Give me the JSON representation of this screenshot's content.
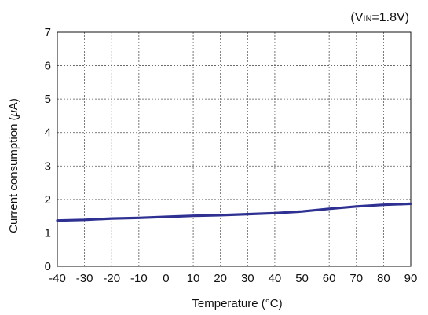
{
  "chart_data": {
    "type": "line",
    "title": "",
    "annotation": {
      "prefix": "(V",
      "subscript": "IN",
      "suffix": "=1.8V)"
    },
    "xlabel": "Temperature (°C)",
    "ylabel_parts": {
      "before": "Current consumption (",
      "greek": "μ",
      "after": "A)"
    },
    "xlim": [
      -40,
      90
    ],
    "ylim": [
      0,
      7
    ],
    "x_ticks": [
      -40,
      -30,
      -20,
      -10,
      0,
      10,
      20,
      30,
      40,
      50,
      60,
      70,
      80,
      90
    ],
    "y_ticks": [
      0,
      1,
      2,
      3,
      4,
      5,
      6,
      7
    ],
    "grid": true,
    "series": [
      {
        "x": [
          -40,
          -30,
          -20,
          -10,
          0,
          10,
          20,
          30,
          40,
          50,
          60,
          70,
          80,
          90
        ],
        "y": [
          1.37,
          1.39,
          1.43,
          1.45,
          1.48,
          1.51,
          1.53,
          1.56,
          1.59,
          1.64,
          1.72,
          1.79,
          1.84,
          1.87
        ],
        "color": "#2e3192"
      }
    ]
  }
}
